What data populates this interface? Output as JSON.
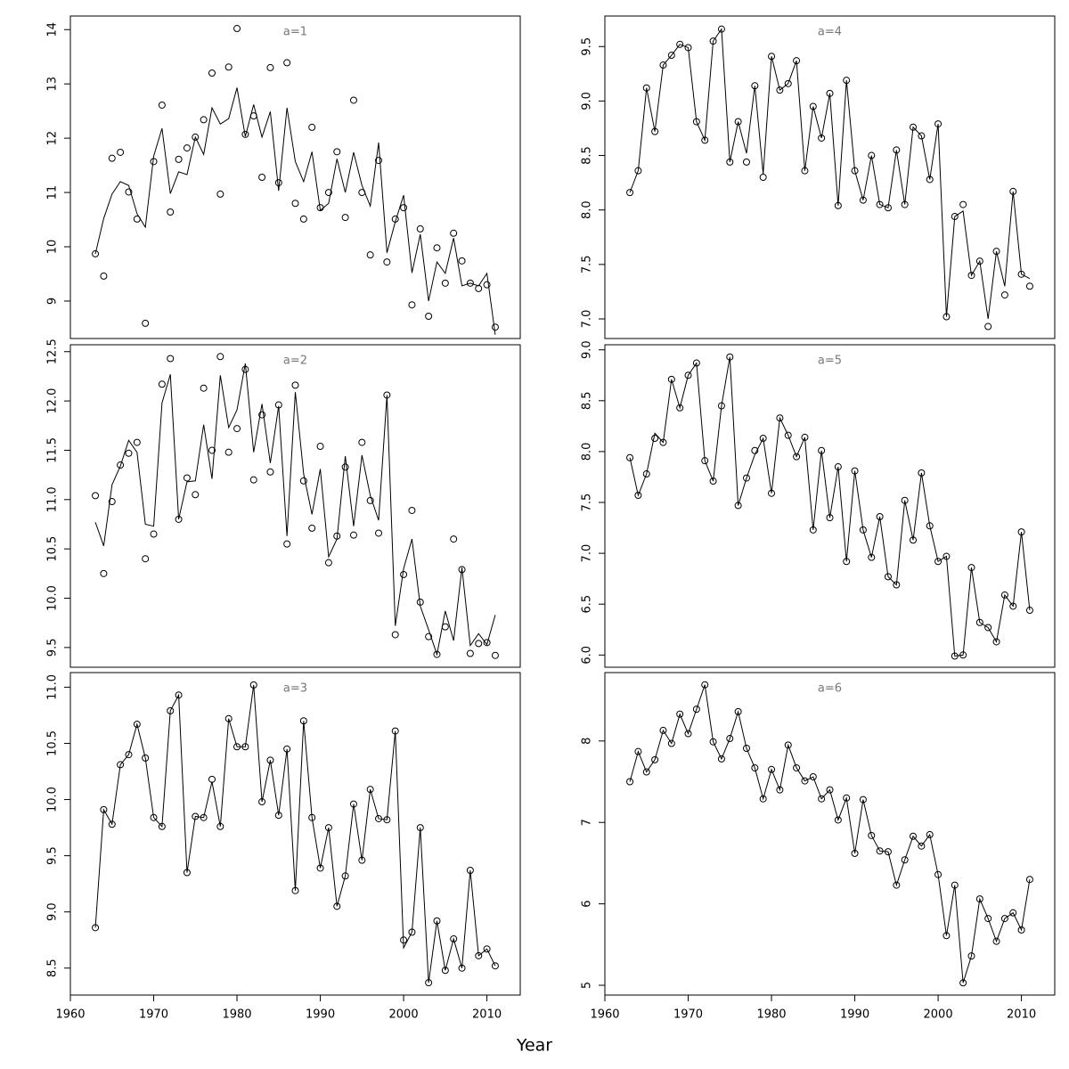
{
  "xlabel": "Year",
  "chart_data": [
    {
      "type": "line",
      "title": "a=1",
      "xlim": [
        1960,
        2014
      ],
      "ylim": [
        8.31,
        14.25
      ],
      "yticks": [
        9,
        10,
        11,
        12,
        13,
        14
      ],
      "x": [
        1963,
        1964,
        1965,
        1966,
        1967,
        1968,
        1969,
        1970,
        1971,
        1972,
        1973,
        1974,
        1975,
        1976,
        1977,
        1978,
        1979,
        1980,
        1981,
        1982,
        1983,
        1984,
        1985,
        1986,
        1987,
        1988,
        1989,
        1990,
        1991,
        1992,
        1993,
        1994,
        1995,
        1996,
        1997,
        1998,
        1999,
        2000,
        2001,
        2002,
        2003,
        2004,
        2005,
        2006,
        2007,
        2008,
        2009,
        2010,
        2011
      ],
      "series": [
        {
          "style": "points",
          "color": "#000000",
          "values": [
            9.87,
            9.46,
            11.63,
            11.74,
            11.01,
            10.51,
            8.59,
            11.57,
            12.61,
            10.64,
            11.61,
            11.82,
            12.02,
            12.34,
            13.2,
            10.97,
            13.31,
            14.02,
            12.07,
            12.41,
            11.28,
            13.3,
            11.18,
            13.39,
            10.8,
            10.51,
            12.2,
            10.72,
            11.0,
            11.75,
            10.54,
            12.7,
            11.0,
            9.85,
            11.59,
            9.72,
            10.51,
            10.72,
            8.93,
            10.33,
            8.72,
            9.98,
            9.33,
            10.25,
            9.74,
            9.33,
            9.23,
            9.3,
            8.52
          ]
        },
        {
          "style": "line",
          "color": "#000000",
          "values": [
            9.87,
            10.52,
            10.97,
            11.2,
            11.13,
            10.61,
            10.36,
            11.67,
            12.18,
            10.98,
            11.38,
            11.33,
            12.02,
            11.7,
            12.56,
            12.26,
            12.36,
            12.93,
            12.03,
            12.62,
            12.02,
            12.49,
            11.03,
            12.56,
            11.57,
            11.2,
            11.75,
            10.67,
            10.8,
            11.62,
            11.0,
            11.74,
            11.13,
            10.75,
            11.92,
            9.89,
            10.46,
            10.95,
            9.52,
            10.23,
            9.0,
            9.72,
            9.51,
            10.16,
            9.28,
            9.33,
            9.28,
            9.51,
            8.38
          ]
        }
      ]
    },
    {
      "type": "line",
      "title": "a=2",
      "xlim": [
        1960,
        2014
      ],
      "ylim": [
        9.3,
        12.57
      ],
      "yticks": [
        9.5,
        {
          "value": 10,
          "label": "10.0"
        },
        10.5,
        {
          "value": 11,
          "label": "11.0"
        },
        11.5,
        {
          "value": 12,
          "label": "12.0"
        },
        12.5
      ],
      "x": [
        1963,
        1964,
        1965,
        1966,
        1967,
        1968,
        1969,
        1970,
        1971,
        1972,
        1973,
        1974,
        1975,
        1976,
        1977,
        1978,
        1979,
        1980,
        1981,
        1982,
        1983,
        1984,
        1985,
        1986,
        1987,
        1988,
        1989,
        1990,
        1991,
        1992,
        1993,
        1994,
        1995,
        1996,
        1997,
        1998,
        1999,
        2000,
        2001,
        2002,
        2003,
        2004,
        2005,
        2006,
        2007,
        2008,
        2009,
        2010,
        2011
      ],
      "series": [
        {
          "style": "points",
          "color": "#000000",
          "values": [
            11.04,
            10.25,
            10.98,
            11.35,
            11.47,
            11.58,
            10.4,
            10.65,
            12.17,
            12.43,
            10.8,
            11.22,
            11.05,
            12.13,
            11.5,
            12.45,
            11.48,
            11.72,
            12.32,
            11.2,
            11.86,
            11.28,
            11.96,
            10.55,
            12.16,
            11.19,
            10.71,
            11.54,
            10.36,
            10.63,
            11.33,
            10.64,
            11.58,
            10.99,
            10.66,
            12.06,
            9.63,
            10.24,
            10.89,
            9.96,
            9.61,
            9.43,
            9.71,
            10.6,
            10.29,
            9.44,
            9.54,
            9.55,
            9.42
          ]
        },
        {
          "style": "line",
          "color": "#000000",
          "values": [
            10.77,
            10.53,
            11.15,
            11.34,
            11.6,
            11.48,
            10.75,
            10.73,
            11.98,
            12.27,
            10.8,
            11.18,
            11.19,
            11.76,
            11.21,
            12.26,
            11.73,
            11.91,
            12.38,
            11.48,
            11.97,
            11.37,
            11.95,
            10.63,
            12.09,
            11.26,
            10.85,
            11.31,
            10.42,
            10.6,
            11.44,
            10.73,
            11.45,
            11.04,
            10.79,
            12.06,
            9.72,
            10.3,
            10.6,
            9.92,
            9.68,
            9.43,
            9.87,
            9.57,
            10.31,
            9.52,
            9.64,
            9.53,
            9.83
          ]
        }
      ]
    },
    {
      "type": "line",
      "title": "a=3",
      "xlim": [
        1960,
        2014
      ],
      "ylim": [
        8.26,
        11.13
      ],
      "yticks": [
        8.5,
        {
          "value": 9,
          "label": "9.0"
        },
        9.5,
        {
          "value": 10,
          "label": "10.0"
        },
        10.5,
        {
          "value": 11,
          "label": "11.0"
        }
      ],
      "xticks": [
        1960,
        1970,
        1980,
        1990,
        2000,
        2010
      ],
      "x": [
        1963,
        1964,
        1965,
        1966,
        1967,
        1968,
        1969,
        1970,
        1971,
        1972,
        1973,
        1974,
        1975,
        1976,
        1977,
        1978,
        1979,
        1980,
        1981,
        1982,
        1983,
        1984,
        1985,
        1986,
        1987,
        1988,
        1989,
        1990,
        1991,
        1992,
        1993,
        1994,
        1995,
        1996,
        1997,
        1998,
        1999,
        2000,
        2001,
        2002,
        2003,
        2004,
        2005,
        2006,
        2007,
        2008,
        2009,
        2010,
        2011
      ],
      "series": [
        {
          "style": "points",
          "color": "#000000",
          "values": [
            8.86,
            9.91,
            9.78,
            10.31,
            10.4,
            10.67,
            10.37,
            9.84,
            9.76,
            10.79,
            10.93,
            9.35,
            9.85,
            9.84,
            10.18,
            9.76,
            10.72,
            10.47,
            10.47,
            11.02,
            9.98,
            10.35,
            9.86,
            10.45,
            9.19,
            10.7,
            9.84,
            9.39,
            9.75,
            9.05,
            9.32,
            9.96,
            9.46,
            10.09,
            9.83,
            9.82,
            10.61,
            8.75,
            8.82,
            9.75,
            8.37,
            8.92,
            8.48,
            8.76,
            8.5,
            9.37,
            8.61,
            8.67,
            8.52
          ]
        },
        {
          "style": "line",
          "color": "#000000",
          "values": [
            8.86,
            9.91,
            9.78,
            10.31,
            10.4,
            10.67,
            10.37,
            9.84,
            9.76,
            10.79,
            10.93,
            9.35,
            9.85,
            9.84,
            10.16,
            9.76,
            10.72,
            10.47,
            10.47,
            11.02,
            9.98,
            10.35,
            9.86,
            10.45,
            9.19,
            10.7,
            9.84,
            9.39,
            9.75,
            9.05,
            9.32,
            9.96,
            9.46,
            10.09,
            9.83,
            9.82,
            10.61,
            8.68,
            8.82,
            9.75,
            8.37,
            8.92,
            8.48,
            8.76,
            8.5,
            9.37,
            8.61,
            8.67,
            8.52
          ]
        }
      ]
    },
    {
      "type": "line",
      "title": "a=4",
      "xlim": [
        1960,
        2014
      ],
      "ylim": [
        6.82,
        9.78
      ],
      "yticks": [
        {
          "value": 7,
          "label": "7.0"
        },
        7.5,
        {
          "value": 8,
          "label": "8.0"
        },
        8.5,
        {
          "value": 9,
          "label": "9.0"
        },
        9.5
      ],
      "x": [
        1963,
        1964,
        1965,
        1966,
        1967,
        1968,
        1969,
        1970,
        1971,
        1972,
        1973,
        1974,
        1975,
        1976,
        1977,
        1978,
        1979,
        1980,
        1981,
        1982,
        1983,
        1984,
        1985,
        1986,
        1987,
        1988,
        1989,
        1990,
        1991,
        1992,
        1993,
        1994,
        1995,
        1996,
        1997,
        1998,
        1999,
        2000,
        2001,
        2002,
        2003,
        2004,
        2005,
        2006,
        2007,
        2008,
        2009,
        2010,
        2011
      ],
      "series": [
        {
          "style": "points",
          "color": "#000000",
          "values": [
            8.16,
            8.36,
            9.12,
            8.72,
            9.33,
            9.42,
            9.52,
            9.49,
            8.81,
            8.64,
            9.55,
            9.66,
            8.44,
            8.81,
            8.44,
            9.14,
            8.3,
            9.41,
            9.1,
            9.16,
            9.37,
            8.36,
            8.95,
            8.66,
            9.07,
            8.04,
            9.19,
            8.36,
            8.09,
            8.5,
            8.05,
            8.02,
            8.55,
            8.05,
            8.76,
            8.68,
            8.28,
            8.79,
            7.02,
            7.94,
            8.05,
            7.4,
            7.53,
            6.93,
            7.62,
            7.22,
            8.17,
            7.41,
            7.3
          ]
        },
        {
          "style": "line",
          "color": "#000000",
          "values": [
            8.16,
            8.36,
            9.12,
            8.72,
            9.33,
            9.42,
            9.52,
            9.49,
            8.81,
            8.64,
            9.55,
            9.66,
            8.44,
            8.81,
            8.52,
            9.14,
            8.33,
            9.41,
            9.1,
            9.16,
            9.37,
            8.36,
            8.95,
            8.66,
            9.07,
            8.04,
            9.19,
            8.36,
            8.09,
            8.5,
            8.05,
            8.02,
            8.55,
            8.05,
            8.76,
            8.68,
            8.28,
            8.79,
            7.02,
            7.94,
            7.99,
            7.4,
            7.53,
            7.0,
            7.62,
            7.3,
            8.17,
            7.41,
            7.37
          ]
        }
      ]
    },
    {
      "type": "line",
      "title": "a=5",
      "xlim": [
        1960,
        2014
      ],
      "ylim": [
        5.88,
        9.05
      ],
      "yticks": [
        {
          "value": 6,
          "label": "6.0"
        },
        6.5,
        {
          "value": 7,
          "label": "7.0"
        },
        7.5,
        {
          "value": 8,
          "label": "8.0"
        },
        8.5,
        {
          "value": 9,
          "label": "9.0"
        }
      ],
      "x": [
        1963,
        1964,
        1965,
        1966,
        1967,
        1968,
        1969,
        1970,
        1971,
        1972,
        1973,
        1974,
        1975,
        1976,
        1977,
        1978,
        1979,
        1980,
        1981,
        1982,
        1983,
        1984,
        1985,
        1986,
        1987,
        1988,
        1989,
        1990,
        1991,
        1992,
        1993,
        1994,
        1995,
        1996,
        1997,
        1998,
        1999,
        2000,
        2001,
        2002,
        2003,
        2004,
        2005,
        2006,
        2007,
        2008,
        2009,
        2010,
        2011
      ],
      "series": [
        {
          "style": "points",
          "color": "#000000",
          "values": [
            7.94,
            7.57,
            7.78,
            8.13,
            8.09,
            8.71,
            8.43,
            8.75,
            8.87,
            7.91,
            7.71,
            8.45,
            8.93,
            7.47,
            7.74,
            8.01,
            8.13,
            7.59,
            8.33,
            8.16,
            7.95,
            8.14,
            7.23,
            8.01,
            7.35,
            7.85,
            6.92,
            7.81,
            7.23,
            6.96,
            7.36,
            6.77,
            6.69,
            7.52,
            7.13,
            7.79,
            7.27,
            6.92,
            6.97,
            5.99,
            6.0,
            6.86,
            6.32,
            6.27,
            6.13,
            6.59,
            6.48,
            7.21,
            6.44
          ]
        },
        {
          "style": "line",
          "color": "#000000",
          "values": [
            7.94,
            7.57,
            7.78,
            8.18,
            8.09,
            8.71,
            8.43,
            8.75,
            8.87,
            7.91,
            7.71,
            8.45,
            8.93,
            7.47,
            7.74,
            7.97,
            8.13,
            7.59,
            8.33,
            8.16,
            7.95,
            8.14,
            7.23,
            8.01,
            7.35,
            7.85,
            6.92,
            7.81,
            7.23,
            6.96,
            7.36,
            6.77,
            6.69,
            7.52,
            7.13,
            7.79,
            7.27,
            6.92,
            6.97,
            5.99,
            6.0,
            6.86,
            6.32,
            6.27,
            6.13,
            6.59,
            6.48,
            7.21,
            6.44
          ]
        }
      ]
    },
    {
      "type": "line",
      "title": "a=6",
      "xlim": [
        1960,
        2014
      ],
      "ylim": [
        4.88,
        8.84
      ],
      "yticks": [
        5,
        6,
        7,
        8
      ],
      "xticks": [
        1960,
        1970,
        1980,
        1990,
        2000,
        2010
      ],
      "x": [
        1963,
        1964,
        1965,
        1966,
        1967,
        1968,
        1969,
        1970,
        1971,
        1972,
        1973,
        1974,
        1975,
        1976,
        1977,
        1978,
        1979,
        1980,
        1981,
        1982,
        1983,
        1984,
        1985,
        1986,
        1987,
        1988,
        1989,
        1990,
        1991,
        1992,
        1993,
        1994,
        1995,
        1996,
        1997,
        1998,
        1999,
        2000,
        2001,
        2002,
        2003,
        2004,
        2005,
        2006,
        2007,
        2008,
        2009,
        2010,
        2011
      ],
      "series": [
        {
          "style": "points",
          "color": "#000000",
          "values": [
            7.5,
            7.87,
            7.62,
            7.77,
            8.13,
            7.97,
            8.33,
            8.09,
            8.39,
            8.69,
            7.99,
            7.78,
            8.03,
            8.36,
            7.91,
            7.67,
            7.29,
            7.65,
            7.4,
            7.95,
            7.67,
            7.51,
            7.56,
            7.29,
            7.4,
            7.03,
            7.3,
            6.62,
            7.28,
            6.84,
            6.65,
            6.64,
            6.23,
            6.54,
            6.83,
            6.71,
            6.85,
            6.36,
            5.61,
            6.23,
            5.03,
            5.36,
            6.06,
            5.82,
            5.54,
            5.82,
            5.89,
            5.68,
            6.3
          ]
        },
        {
          "style": "line",
          "color": "#000000",
          "values": [
            7.5,
            7.87,
            7.62,
            7.77,
            8.13,
            7.97,
            8.33,
            8.09,
            8.39,
            8.69,
            7.99,
            7.78,
            8.03,
            8.36,
            7.91,
            7.67,
            7.29,
            7.65,
            7.4,
            7.95,
            7.67,
            7.51,
            7.56,
            7.29,
            7.4,
            7.03,
            7.3,
            6.62,
            7.28,
            6.84,
            6.65,
            6.64,
            6.23,
            6.54,
            6.83,
            6.71,
            6.85,
            6.36,
            5.61,
            6.23,
            5.03,
            5.36,
            6.06,
            5.82,
            5.54,
            5.82,
            5.89,
            5.68,
            6.3
          ]
        }
      ]
    }
  ]
}
